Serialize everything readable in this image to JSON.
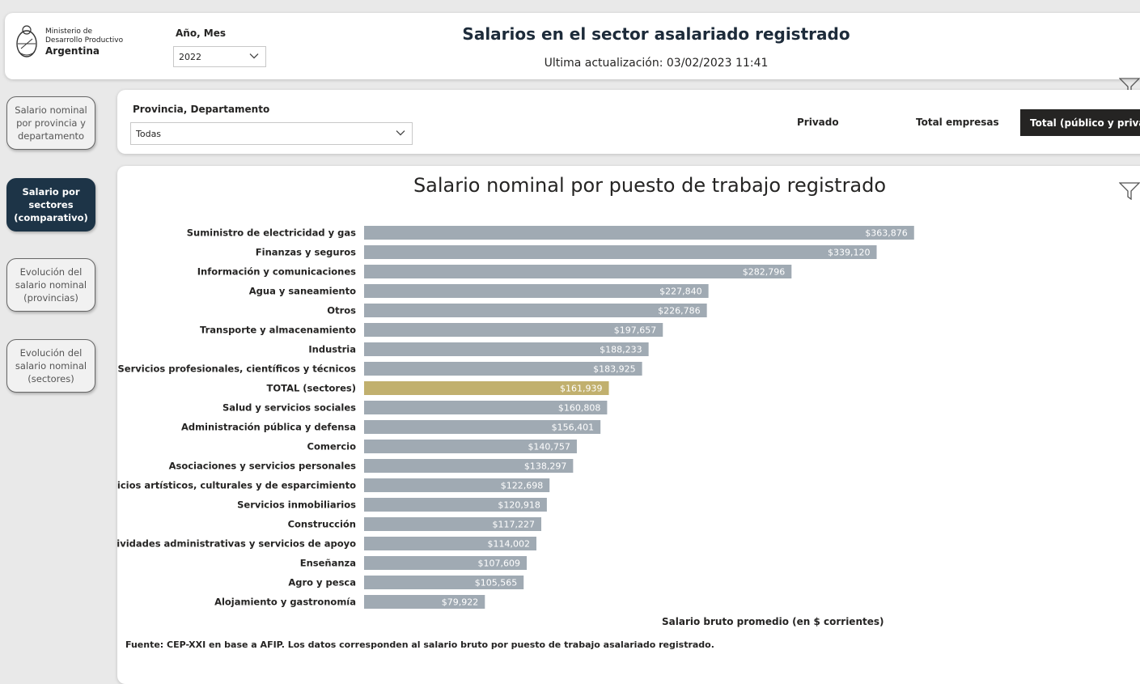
{
  "header": {
    "logo": {
      "line1": "Ministerio de",
      "line2": "Desarrollo Productivo",
      "line3": "Argentina"
    },
    "period_slicer": {
      "label": "Año, Mes",
      "value": "2022"
    },
    "title": "Salarios en el sector asalariado registrado",
    "updated": "Ultima actualización: 03/02/2023 11:41"
  },
  "nav": {
    "items": [
      {
        "label": "Salario nominal por provincia y departamento",
        "active": false
      },
      {
        "label": "Salario por sectores (comparativo)",
        "active": true
      },
      {
        "label": "Evolución del salario nominal (provincias)",
        "active": false
      },
      {
        "label": "Evolución del salario nominal (sectores)",
        "active": false
      }
    ]
  },
  "filters": {
    "province_label": "Provincia, Departamento",
    "province_value": "Todas",
    "segments": [
      {
        "label": "Privado",
        "active": false
      },
      {
        "label": "Total empresas",
        "active": false
      },
      {
        "label": "Total (público y privado)",
        "active": true
      }
    ]
  },
  "chart_data": {
    "type": "bar",
    "orientation": "horizontal",
    "title": "Salario nominal por puesto de trabajo registrado",
    "xlabel": "Salario bruto promedio (en $ corrientes)",
    "ylabel": "",
    "xlim": [
      0,
      364000
    ],
    "categories": [
      "Suministro de electricidad y gas",
      "Finanzas y seguros",
      "Información y comunicaciones",
      "Agua y saneamiento",
      "Otros",
      "Transporte y almacenamiento",
      "Industria",
      "Servicios profesionales, científicos y técnicos",
      "TOTAL (sectores)",
      "Salud y servicios sociales",
      "Administración pública y defensa",
      "Comercio",
      "Asociaciones y servicios personales",
      "Servicios artísticos, culturales y de esparcimiento",
      "Servicios inmobiliarios",
      "Construcción",
      "Actividades administrativas y servicios de apoyo",
      "Enseñanza",
      "Agro y pesca",
      "Alojamiento y gastronomía"
    ],
    "values": [
      363876,
      339120,
      282796,
      227840,
      226786,
      197657,
      188233,
      183925,
      161939,
      160808,
      156401,
      140757,
      138297,
      122698,
      120918,
      117227,
      114002,
      107609,
      105565,
      79922
    ],
    "value_labels": [
      "$363,876",
      "$339,120",
      "$282,796",
      "$227,840",
      "$226,786",
      "$197,657",
      "$188,233",
      "$183,925",
      "$161,939",
      "$160,808",
      "$156,401",
      "$140,757",
      "$138,297",
      "$122,698",
      "$120,918",
      "$117,227",
      "$114,002",
      "$107,609",
      "$105,565",
      "$79,922"
    ],
    "highlight_index": 8,
    "colors": {
      "bar": "#a0aab3",
      "highlight": "#c1b06e",
      "label": "#ffffff"
    },
    "grid": false,
    "legend": "none"
  },
  "footer": {
    "source": "Fuente: CEP-XXI en base a AFIP. Los datos corresponden al salario bruto por puesto de trabajo asalariado registrado."
  }
}
